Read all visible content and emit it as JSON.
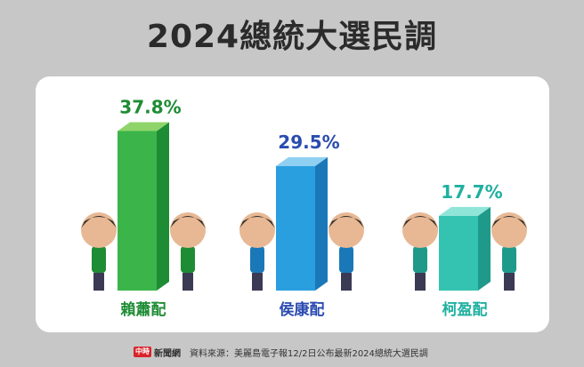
{
  "title": "2024總統大選民調",
  "footer": {
    "logo_mark": "中時",
    "logo_text": "新聞網",
    "source": "資料來源：美麗島電子報12/2日公布最新2024總統大選民調"
  },
  "chart_data": {
    "type": "bar",
    "title": "2024總統大選民調",
    "categories": [
      "賴蕭配",
      "侯康配",
      "柯盈配"
    ],
    "values": [
      37.8,
      29.5,
      17.7
    ],
    "labels": [
      "37.8%",
      "29.5%",
      "17.7%"
    ],
    "colors": {
      "bar_front": [
        "#3bb54a",
        "#2a9fe0",
        "#34c3b0"
      ],
      "bar_side": [
        "#1e8c34",
        "#1a78b8",
        "#1f9a8a"
      ],
      "bar_top": [
        "#8fd46a",
        "#8fd0f2",
        "#8fe5d8"
      ],
      "label": [
        "#1e8c34",
        "#2a4bb0",
        "#1fb0a0"
      ]
    },
    "ylim": [
      0,
      40
    ],
    "grid": false,
    "legend": "none"
  }
}
